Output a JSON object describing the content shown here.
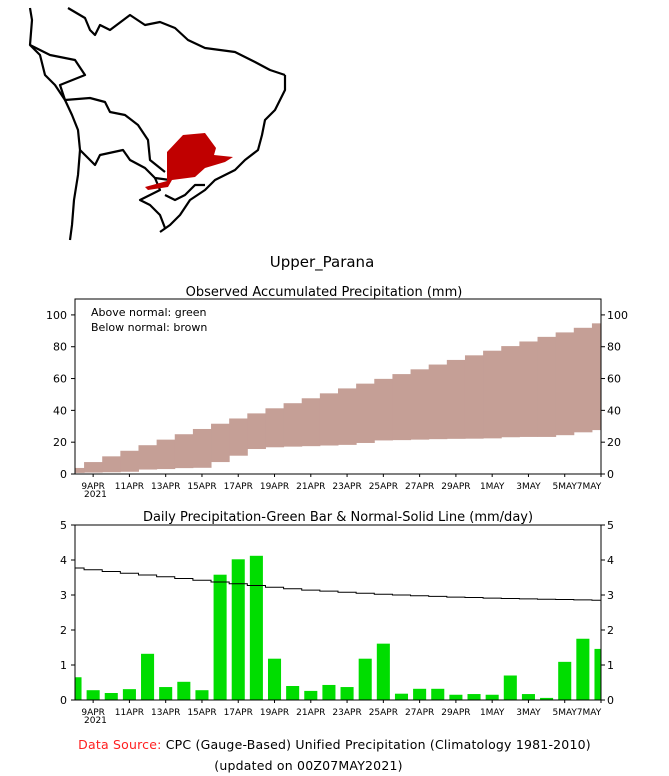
{
  "region_title": "Upper_Parana",
  "colors": {
    "above": "#00dd00",
    "below": "#c59f96",
    "bar": "#00dd00",
    "region": "#c00000",
    "source_label": "#ff2020"
  },
  "footer": {
    "source_label": "Data Source:",
    "source_text": "CPC (Gauge-Based) Unified Precipitation (Climatology 1981-2010)",
    "updated": "(updated on 00Z07MAY2021)"
  },
  "chart_data": [
    {
      "type": "area",
      "title": "Observed Accumulated Precipitation (mm)",
      "legend": [
        "Above normal: green",
        "Below normal: brown"
      ],
      "legend_placement": "top-left",
      "ylim": [
        0,
        110
      ],
      "yticks": [
        0,
        20,
        40,
        60,
        80,
        100
      ],
      "x_tick_labels": [
        "9APR",
        "11APR",
        "13APR",
        "15APR",
        "17APR",
        "19APR",
        "21APR",
        "23APR",
        "25APR",
        "27APR",
        "29APR",
        "1MAY",
        "3MAY",
        "5MAY",
        "7MAY"
      ],
      "x_year_label": "2021",
      "dates": [
        "8APR",
        "9APR",
        "10APR",
        "11APR",
        "12APR",
        "13APR",
        "14APR",
        "15APR",
        "16APR",
        "17APR",
        "18APR",
        "19APR",
        "20APR",
        "21APR",
        "22APR",
        "23APR",
        "24APR",
        "25APR",
        "26APR",
        "27APR",
        "28APR",
        "29APR",
        "30APR",
        "1MAY",
        "2MAY",
        "3MAY",
        "4MAY",
        "5MAY",
        "6MAY",
        "7MAY"
      ],
      "series": [
        {
          "name": "Normal accumulated",
          "values": [
            3.8,
            7.5,
            11.1,
            14.6,
            18.1,
            21.6,
            25.0,
            28.3,
            31.6,
            34.9,
            38.1,
            41.3,
            44.5,
            47.6,
            50.7,
            53.8,
            56.8,
            59.8,
            62.8,
            65.8,
            68.8,
            71.7,
            74.6,
            77.5,
            80.4,
            83.3,
            86.2,
            89.0,
            91.9,
            94.7
          ]
        },
        {
          "name": "Observed accumulated",
          "values": [
            0.7,
            0.9,
            1.1,
            1.4,
            2.8,
            3.1,
            3.7,
            3.9,
            7.5,
            11.5,
            15.7,
            16.8,
            17.2,
            17.5,
            17.9,
            18.3,
            19.5,
            21.1,
            21.3,
            21.6,
            21.9,
            22.1,
            22.2,
            22.4,
            23.1,
            23.3,
            23.3,
            24.4,
            26.2,
            27.6
          ]
        }
      ]
    },
    {
      "type": "bar",
      "title": "Daily Precipitation-Green Bar & Normal-Solid Line (mm/day)",
      "ylim": [
        0,
        5
      ],
      "yticks": [
        0,
        1,
        2,
        3,
        4,
        5
      ],
      "x_tick_labels": [
        "9APR",
        "11APR",
        "13APR",
        "15APR",
        "17APR",
        "19APR",
        "21APR",
        "23APR",
        "25APR",
        "27APR",
        "29APR",
        "1MAY",
        "3MAY",
        "5MAY",
        "7MAY"
      ],
      "x_year_label": "2021",
      "dates": [
        "8APR",
        "9APR",
        "10APR",
        "11APR",
        "12APR",
        "13APR",
        "14APR",
        "15APR",
        "16APR",
        "17APR",
        "18APR",
        "19APR",
        "20APR",
        "21APR",
        "22APR",
        "23APR",
        "24APR",
        "25APR",
        "26APR",
        "27APR",
        "28APR",
        "29APR",
        "30APR",
        "1MAY",
        "2MAY",
        "3MAY",
        "4MAY",
        "5MAY",
        "6MAY",
        "7MAY"
      ],
      "series": [
        {
          "name": "Daily observed",
          "values": [
            0.65,
            0.28,
            0.2,
            0.31,
            1.32,
            0.37,
            0.52,
            0.28,
            3.58,
            4.02,
            4.12,
            1.18,
            0.4,
            0.26,
            0.43,
            0.37,
            1.18,
            1.61,
            0.18,
            0.32,
            0.32,
            0.15,
            0.17,
            0.15,
            0.7,
            0.17,
            0.06,
            1.09,
            1.75,
            1.46
          ]
        },
        {
          "name": "Daily normal",
          "values": [
            3.77,
            3.72,
            3.67,
            3.62,
            3.57,
            3.52,
            3.47,
            3.42,
            3.37,
            3.32,
            3.27,
            3.22,
            3.18,
            3.14,
            3.11,
            3.08,
            3.05,
            3.02,
            3.0,
            2.98,
            2.96,
            2.94,
            2.93,
            2.91,
            2.9,
            2.89,
            2.88,
            2.87,
            2.86,
            2.85
          ]
        }
      ]
    }
  ]
}
